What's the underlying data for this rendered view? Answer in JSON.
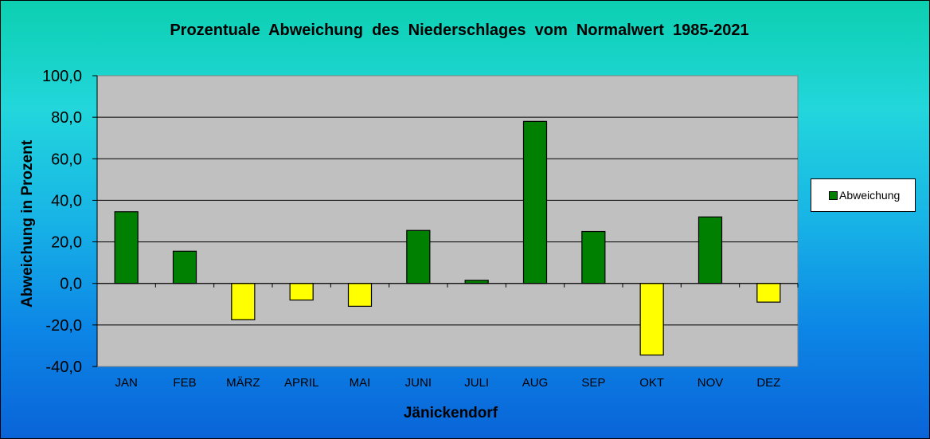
{
  "chart_data": {
    "type": "bar",
    "title": "Prozentuale  Abweichung  des  Niederschlages  vom  Normalwert  1985-2021",
    "xlabel": "Jänickendorf",
    "ylabel": "Abweichung in Prozent",
    "ylim": [
      -40,
      100
    ],
    "yticks": [
      100,
      80,
      60,
      40,
      20,
      0,
      -20,
      -40
    ],
    "ytick_labels": [
      "100,0",
      "80,0",
      "60,0",
      "40,0",
      "20,0",
      "0,0",
      "-20,0",
      "-40,0"
    ],
    "categories": [
      "JAN",
      "FEB",
      "MÄRZ",
      "APRIL",
      "MAI",
      "JUNI",
      "JULI",
      "AUG",
      "SEP",
      "OKT",
      "NOV",
      "DEZ"
    ],
    "series": [
      {
        "name": "Abweichung",
        "values": [
          34.5,
          15.5,
          -17.5,
          -8.0,
          -11.0,
          25.5,
          1.5,
          78.0,
          25.0,
          -34.5,
          32.0,
          -9.0
        ]
      }
    ],
    "colors": {
      "positive": "#008000",
      "negative": "#ffff00",
      "plot_background": "#c0c0c0"
    },
    "grid": true,
    "legend": "right"
  }
}
